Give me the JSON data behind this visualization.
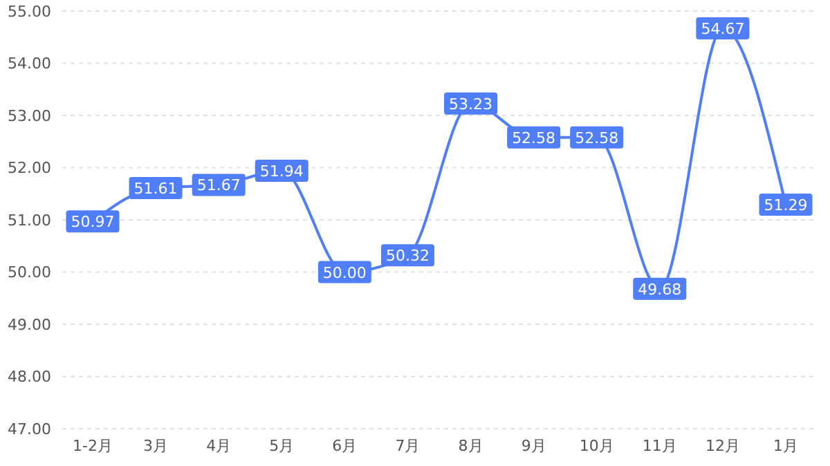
{
  "chart_data": {
    "type": "line",
    "categories": [
      "1-2月",
      "3月",
      "4月",
      "5月",
      "6月",
      "7月",
      "8月",
      "9月",
      "10月",
      "11月",
      "12月",
      "1月"
    ],
    "series": [
      {
        "color": "#4f7ef8",
        "values": [
          50.97,
          51.61,
          51.67,
          51.94,
          50.0,
          50.32,
          53.23,
          52.58,
          52.58,
          49.68,
          54.67,
          51.29
        ],
        "value_labels": [
          "50.97",
          "51.61",
          "51.67",
          "51.94",
          "50.00",
          "50.32",
          "53.23",
          "52.58",
          "52.58",
          "49.68",
          "54.67",
          "51.29"
        ]
      }
    ],
    "ylim": [
      47,
      55
    ],
    "yticks": [
      {
        "value": 47,
        "label": "47.00"
      },
      {
        "value": 48,
        "label": "48.00"
      },
      {
        "value": 49,
        "label": "49.00"
      },
      {
        "value": 50,
        "label": "50.00"
      },
      {
        "value": 51,
        "label": "51.00"
      },
      {
        "value": 52,
        "label": "52.00"
      },
      {
        "value": 53,
        "label": "53.00"
      },
      {
        "value": 54,
        "label": "54.00"
      },
      {
        "value": 55,
        "label": "55.00"
      }
    ],
    "grid": "y",
    "marker": "square",
    "line_style": "solid",
    "legend": false
  }
}
